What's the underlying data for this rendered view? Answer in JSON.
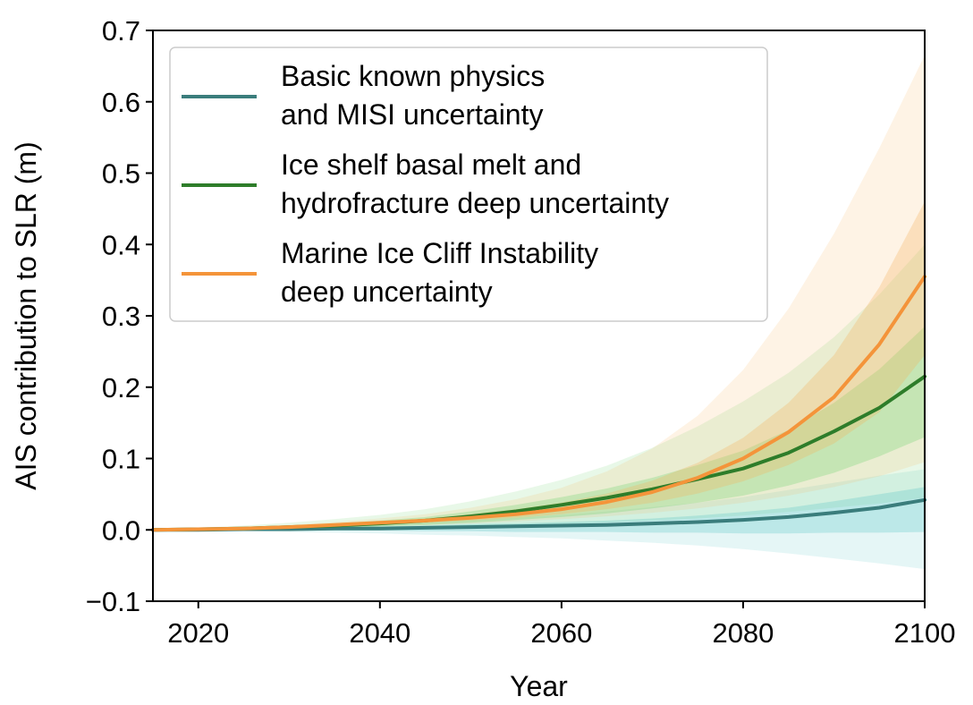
{
  "chart_data": {
    "type": "line",
    "title": "",
    "xlabel": "Year",
    "ylabel": "AIS contribution to SLR (m)",
    "xlim": [
      2015,
      2100
    ],
    "ylim": [
      -0.1,
      0.7
    ],
    "xticks": [
      2020,
      2040,
      2060,
      2080,
      2100
    ],
    "xtick_labels": [
      "2020",
      "2040",
      "2060",
      "2080",
      "2100"
    ],
    "yticks": [
      -0.1,
      0.0,
      0.1,
      0.2,
      0.3,
      0.4,
      0.5,
      0.6,
      0.7
    ],
    "ytick_labels": [
      "−0.1",
      "0.0",
      "0.1",
      "0.2",
      "0.3",
      "0.4",
      "0.5",
      "0.6",
      "0.7"
    ],
    "grid": false,
    "legend_position": "top-left",
    "x": [
      2015,
      2020,
      2025,
      2030,
      2035,
      2040,
      2045,
      2050,
      2055,
      2060,
      2065,
      2070,
      2075,
      2080,
      2085,
      2090,
      2095,
      2100
    ],
    "series": [
      {
        "name": "Basic known physics and MISI uncertainty",
        "legend_lines": [
          "Basic known physics",
          "and MISI uncertainty"
        ],
        "color": "#3a7d7c",
        "band_color": "#5ec8c8",
        "median": [
          0.0,
          0.0,
          0.001,
          0.001,
          0.002,
          0.002,
          0.003,
          0.004,
          0.005,
          0.006,
          0.007,
          0.009,
          0.011,
          0.014,
          0.018,
          0.024,
          0.031,
          0.042
        ],
        "inner_band": {
          "lower": [
            0.0,
            0.0,
            0.0,
            -0.001,
            -0.001,
            -0.001,
            -0.002,
            -0.002,
            -0.003,
            -0.003,
            -0.003,
            -0.004,
            -0.004,
            -0.005,
            -0.005,
            -0.004,
            -0.004,
            -0.003
          ],
          "upper": [
            0.0,
            0.0,
            0.002,
            0.003,
            0.004,
            0.005,
            0.006,
            0.008,
            0.009,
            0.011,
            0.013,
            0.016,
            0.02,
            0.025,
            0.031,
            0.04,
            0.05,
            0.06
          ]
        },
        "outer_band": {
          "lower": [
            0.0,
            -0.001,
            -0.002,
            -0.003,
            -0.004,
            -0.005,
            -0.007,
            -0.008,
            -0.01,
            -0.012,
            -0.015,
            -0.018,
            -0.022,
            -0.027,
            -0.033,
            -0.04,
            -0.047,
            -0.055
          ],
          "upper": [
            0.0,
            0.002,
            0.003,
            0.005,
            0.007,
            0.009,
            0.011,
            0.014,
            0.017,
            0.021,
            0.026,
            0.032,
            0.038,
            0.046,
            0.056,
            0.066,
            0.076,
            0.085
          ]
        }
      },
      {
        "name": "Ice shelf basal melt and hydrofracture deep uncertainty",
        "legend_lines": [
          "Ice shelf basal melt and",
          "hydrofracture deep uncertainty"
        ],
        "color": "#2e7d2a",
        "band_color": "#6fd46f",
        "median": [
          0.0,
          0.001,
          0.002,
          0.004,
          0.006,
          0.009,
          0.013,
          0.019,
          0.026,
          0.035,
          0.045,
          0.057,
          0.071,
          0.086,
          0.108,
          0.138,
          0.171,
          0.215
        ],
        "inner_band": {
          "lower": [
            0.0,
            0.001,
            0.001,
            0.002,
            0.003,
            0.005,
            0.007,
            0.01,
            0.014,
            0.018,
            0.023,
            0.03,
            0.038,
            0.048,
            0.062,
            0.08,
            0.103,
            0.13
          ],
          "upper": [
            0.0,
            0.002,
            0.003,
            0.006,
            0.009,
            0.013,
            0.018,
            0.026,
            0.035,
            0.046,
            0.058,
            0.073,
            0.091,
            0.111,
            0.14,
            0.178,
            0.225,
            0.285
          ]
        },
        "outer_band": {
          "lower": [
            0.0,
            0.0,
            0.001,
            0.001,
            0.002,
            0.002,
            0.003,
            0.004,
            0.006,
            0.008,
            0.01,
            0.013,
            0.016,
            0.02,
            0.025,
            0.031,
            0.037,
            0.045
          ],
          "upper": [
            0.0,
            0.003,
            0.006,
            0.01,
            0.015,
            0.021,
            0.029,
            0.04,
            0.054,
            0.07,
            0.09,
            0.115,
            0.145,
            0.18,
            0.22,
            0.27,
            0.33,
            0.4
          ]
        }
      },
      {
        "name": "Marine Ice Cliff Instability deep uncertainty",
        "legend_lines": [
          "Marine Ice Cliff Instability",
          "deep uncertainty"
        ],
        "color": "#f4943a",
        "band_color": "#f6b25c",
        "median": [
          0.0,
          0.001,
          0.002,
          0.004,
          0.007,
          0.01,
          0.013,
          0.017,
          0.022,
          0.029,
          0.039,
          0.053,
          0.073,
          0.1,
          0.137,
          0.186,
          0.26,
          0.355
        ],
        "inner_band": {
          "lower": [
            0.0,
            0.0,
            0.001,
            0.003,
            0.005,
            0.007,
            0.01,
            0.013,
            0.017,
            0.022,
            0.029,
            0.038,
            0.051,
            0.068,
            0.091,
            0.121,
            0.165,
            0.245
          ],
          "upper": [
            0.0,
            0.001,
            0.003,
            0.005,
            0.008,
            0.012,
            0.016,
            0.022,
            0.029,
            0.038,
            0.051,
            0.069,
            0.094,
            0.129,
            0.178,
            0.245,
            0.34,
            0.46
          ]
        },
        "outer_band": {
          "lower": [
            0.0,
            0.0,
            0.001,
            0.002,
            0.003,
            0.005,
            0.007,
            0.009,
            0.012,
            0.015,
            0.019,
            0.024,
            0.03,
            0.038,
            0.048,
            0.06,
            0.075,
            0.095
          ],
          "upper": [
            0.0,
            0.001,
            0.004,
            0.007,
            0.011,
            0.016,
            0.022,
            0.031,
            0.043,
            0.059,
            0.082,
            0.114,
            0.16,
            0.224,
            0.31,
            0.415,
            0.535,
            0.665
          ]
        }
      }
    ]
  }
}
